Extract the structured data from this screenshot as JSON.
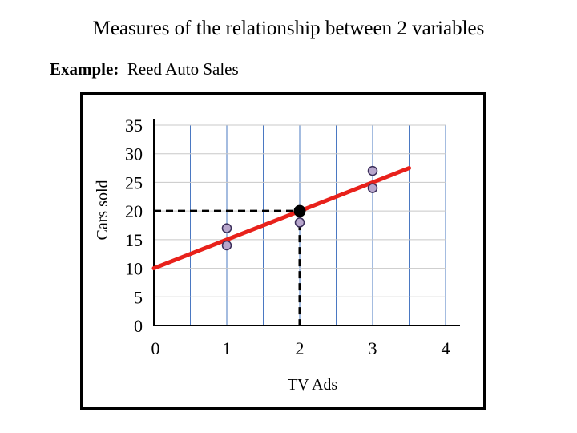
{
  "slide": {
    "title": "Measures of the relationship between 2 variables",
    "example_label": "Example:",
    "example_text": "Reed Auto Sales"
  },
  "chart_data": {
    "type": "scatter",
    "xlabel": "TV Ads",
    "ylabel": "Cars sold",
    "xlim": [
      0,
      4
    ],
    "ylim": [
      0,
      35
    ],
    "x_ticks": [
      "0",
      "1",
      "2",
      "3",
      "4"
    ],
    "y_ticks": [
      "35",
      "30",
      "25",
      "20",
      "15",
      "10",
      "5",
      "0"
    ],
    "grid": true,
    "points": [
      {
        "x": 1,
        "y": 14
      },
      {
        "x": 1,
        "y": 17
      },
      {
        "x": 2,
        "y": 18
      },
      {
        "x": 3,
        "y": 24
      },
      {
        "x": 3,
        "y": 27
      }
    ],
    "mean_point": {
      "x": 2,
      "y": 20
    },
    "regression_line": {
      "x_start": 0,
      "y_start": 10,
      "x_end": 3.5,
      "y_end": 27.5
    },
    "colors": {
      "regression_line": "#e8211b",
      "points_fill": "#b7a6cc",
      "points_stroke": "#3a2d59",
      "grid_vertical": "#4a78c2",
      "grid_horizontal": "#c8c8c8"
    }
  }
}
